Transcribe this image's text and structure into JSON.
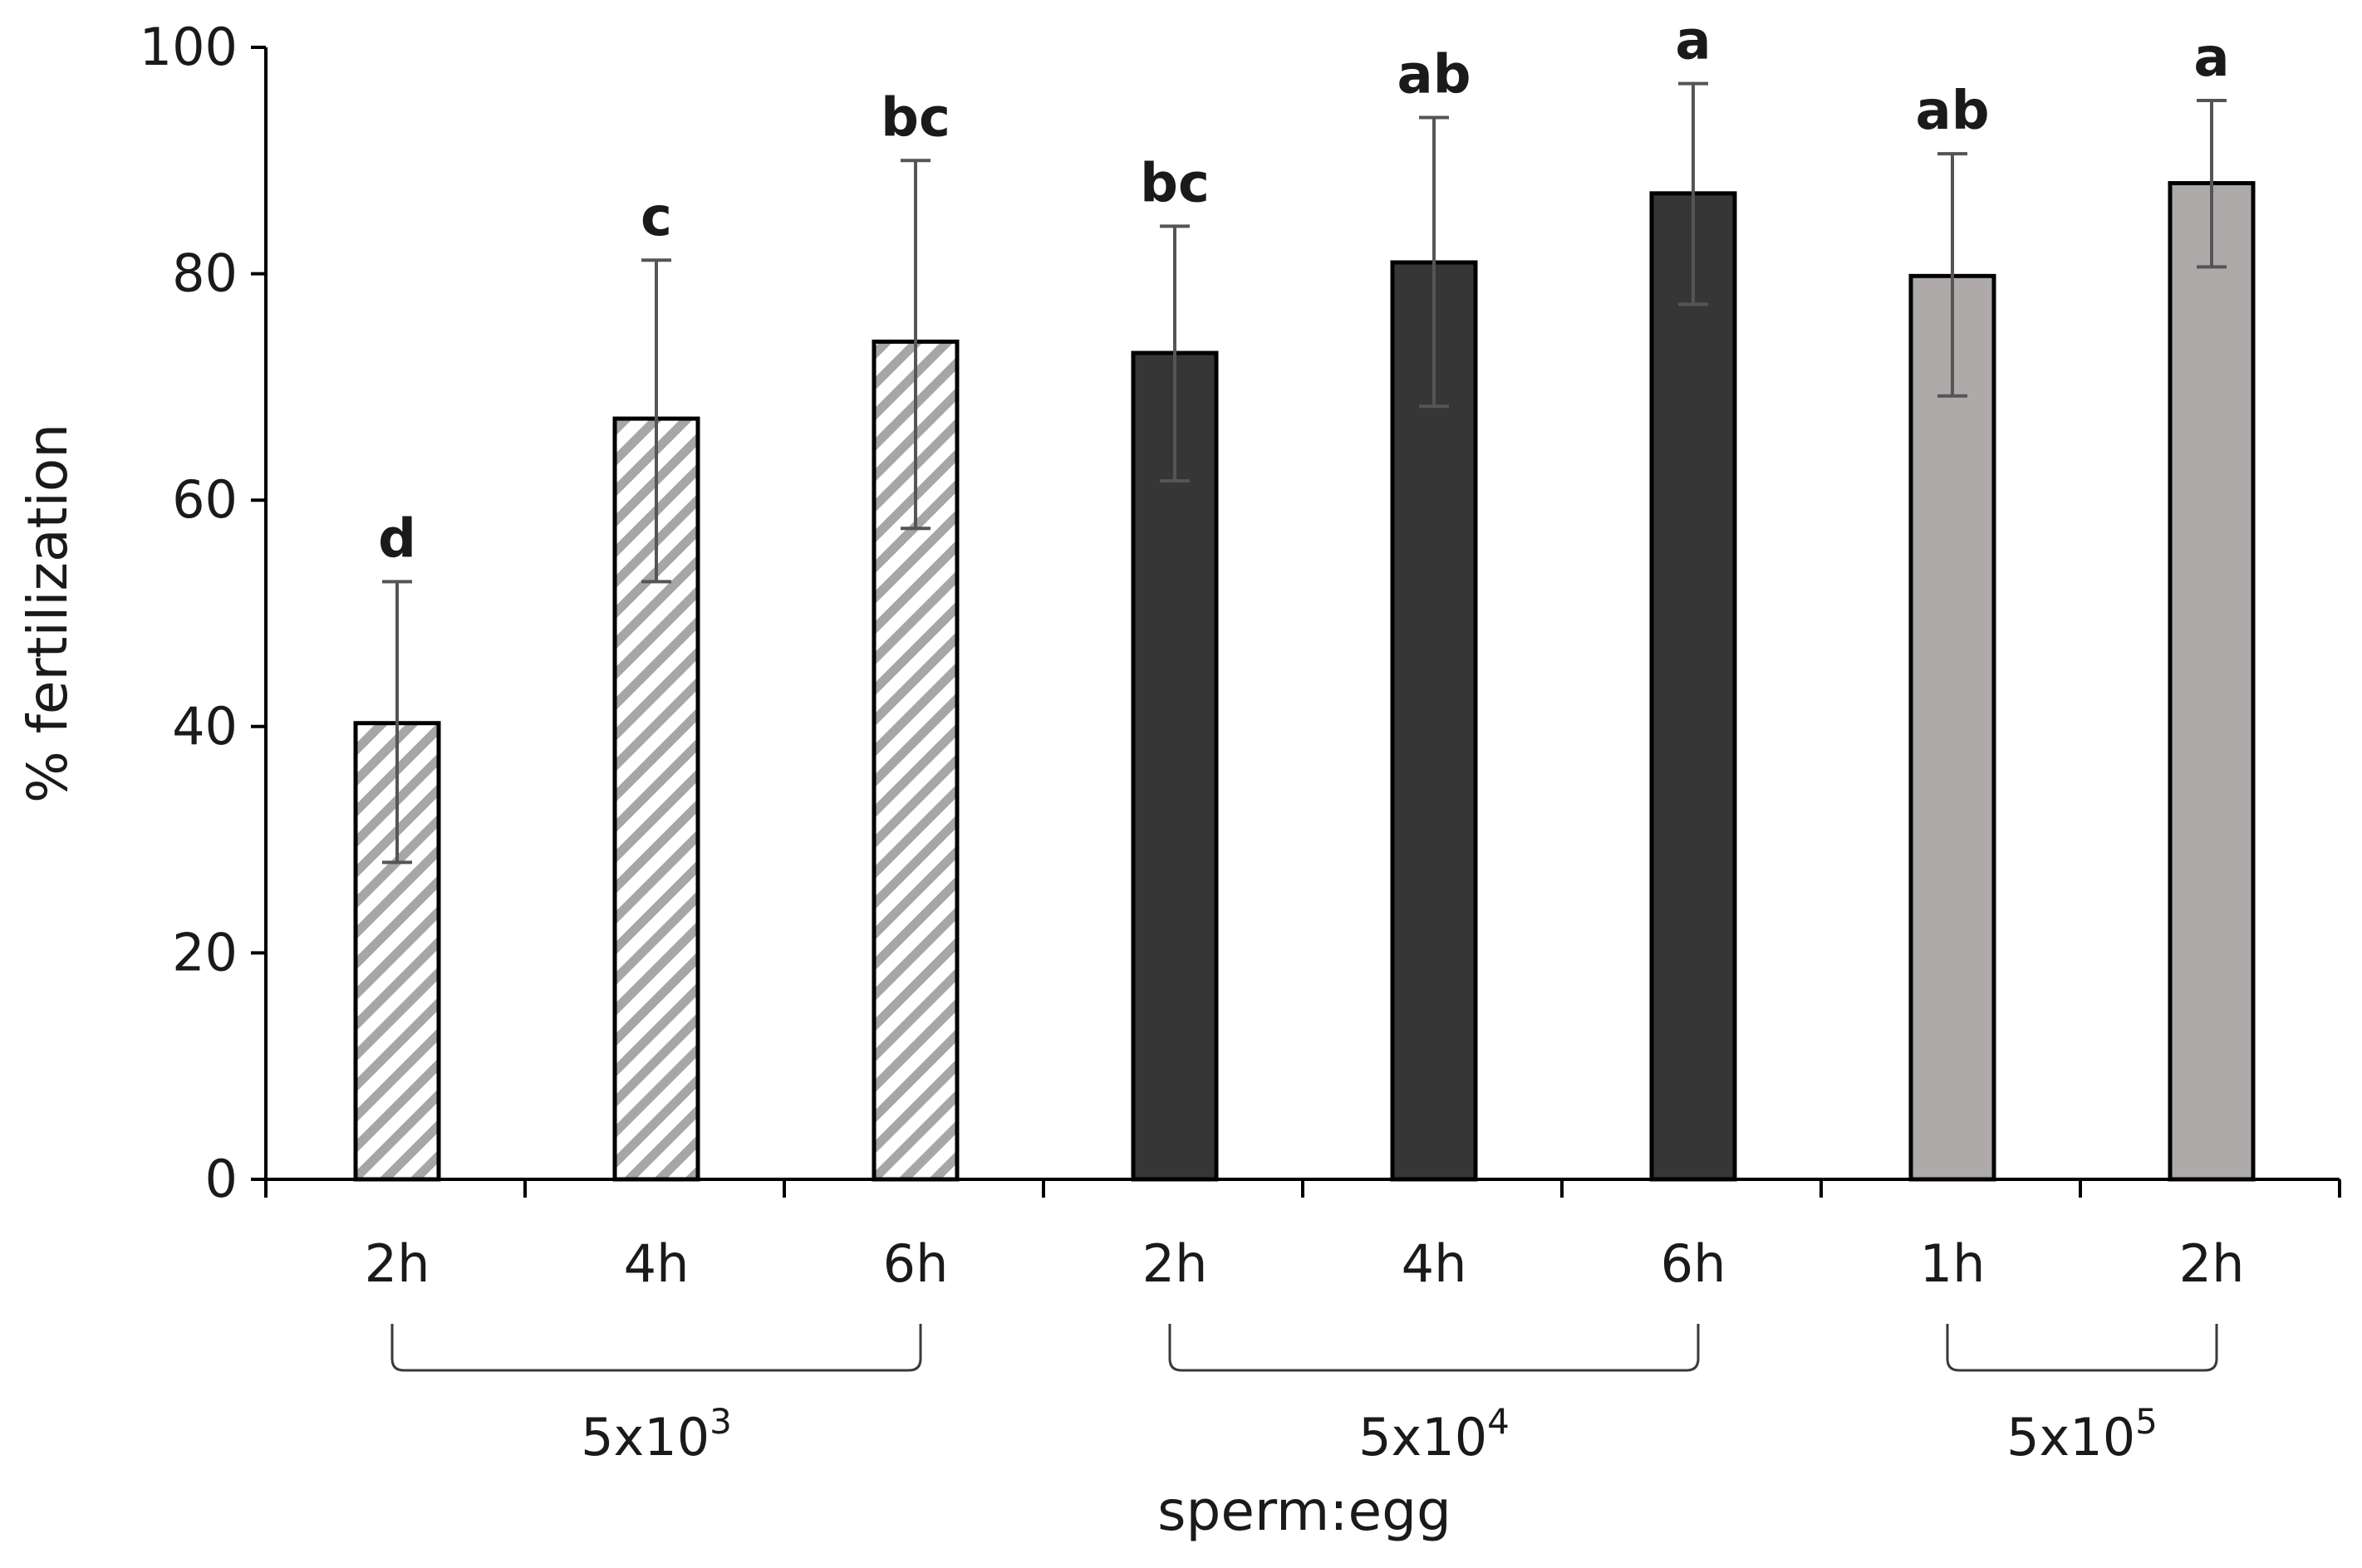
{
  "chart_data": {
    "type": "bar",
    "title": "",
    "ylabel": "% fertilization",
    "xlabel": "sperm:egg",
    "ylim": [
      0,
      100
    ],
    "yticks": [
      0,
      20,
      40,
      60,
      80,
      100
    ],
    "grid": false,
    "legend": "none",
    "groups": [
      {
        "label_base": "5x10",
        "label_exp": "3",
        "style": "hatched",
        "categories": [
          "2h",
          "4h",
          "6h"
        ],
        "values": [
          40.3,
          67.2,
          74.0
        ],
        "error_low": [
          28.0,
          52.8,
          57.5
        ],
        "error_high": [
          52.8,
          81.2,
          90.0
        ],
        "significance": [
          "d",
          "c",
          "bc"
        ]
      },
      {
        "label_base": "5x10",
        "label_exp": "4",
        "style": "dark",
        "categories": [
          "2h",
          "4h",
          "6h"
        ],
        "values": [
          73.0,
          81.0,
          87.1
        ],
        "error_low": [
          61.7,
          68.3,
          77.3
        ],
        "error_high": [
          84.2,
          93.8,
          96.8
        ],
        "significance": [
          "bc",
          "ab",
          "a"
        ]
      },
      {
        "label_base": "5x10",
        "label_exp": "5",
        "style": "gray",
        "categories": [
          "1h",
          "2h"
        ],
        "values": [
          79.8,
          88.0
        ],
        "error_low": [
          69.2,
          80.6
        ],
        "error_high": [
          90.6,
          95.3
        ],
        "significance": [
          "ab",
          "a"
        ]
      }
    ],
    "colors": {
      "dark": "#363636",
      "gray": "#aeaaaa",
      "hatch": "#a6a6a6",
      "outline": "#000000",
      "error_bar": "#555555"
    }
  }
}
